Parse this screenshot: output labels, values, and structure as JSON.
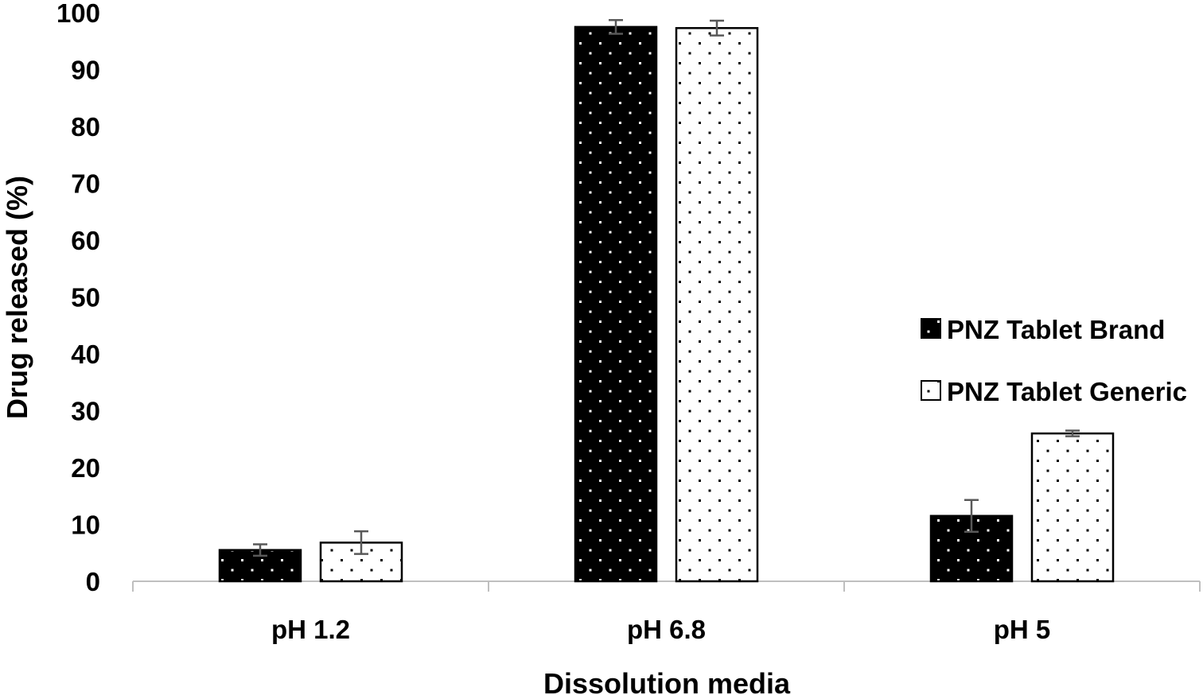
{
  "chart_data": {
    "type": "bar",
    "categories": [
      "pH 1.2",
      "pH 6.8",
      "pH 5"
    ],
    "series": [
      {
        "name": "PNZ Tablet Brand",
        "values": [
          5.5,
          97.5,
          11.5
        ],
        "errors": [
          1.0,
          1.2,
          2.8
        ],
        "fill": "#000000",
        "dot_color": "#ffffff"
      },
      {
        "name": "PNZ Tablet Generic",
        "values": [
          6.8,
          97.3,
          26.0
        ],
        "errors": [
          2.0,
          1.3,
          0.5
        ],
        "fill": "#ffffff",
        "dot_color": "#000000"
      }
    ],
    "title": "",
    "xlabel": "Dissolution media",
    "ylabel": "Drug released (%)",
    "ylim": [
      0,
      100
    ],
    "yticks": [
      "0",
      "10",
      "20",
      "30",
      "40",
      "50",
      "60",
      "70",
      "80",
      "90",
      "100"
    ],
    "grid": false,
    "legend_position": "right"
  }
}
